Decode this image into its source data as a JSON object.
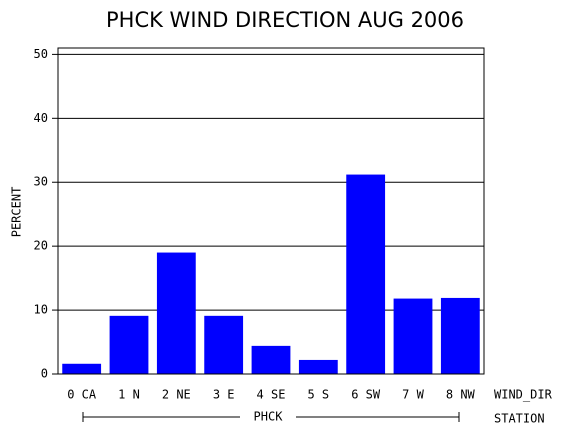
{
  "chart_data": {
    "type": "bar",
    "title": "PHCK WIND DIRECTION AUG 2006",
    "y_label": "PERCENT",
    "x_label": "WIND_DIR",
    "group_label": "PHCK",
    "group_axis_label": "STATION",
    "categories": [
      "0 CA",
      "1 N",
      "2 NE",
      "3 E",
      "4 SE",
      "5 S",
      "6 SW",
      "7 W",
      "8 NW"
    ],
    "values": [
      1.6,
      9.1,
      19.0,
      9.1,
      4.4,
      2.2,
      31.2,
      11.8,
      11.9
    ],
    "color": "#0000ff",
    "ylim": [
      0,
      51
    ],
    "yticks": [
      0,
      10,
      20,
      30,
      40,
      50
    ],
    "grid": true
  }
}
